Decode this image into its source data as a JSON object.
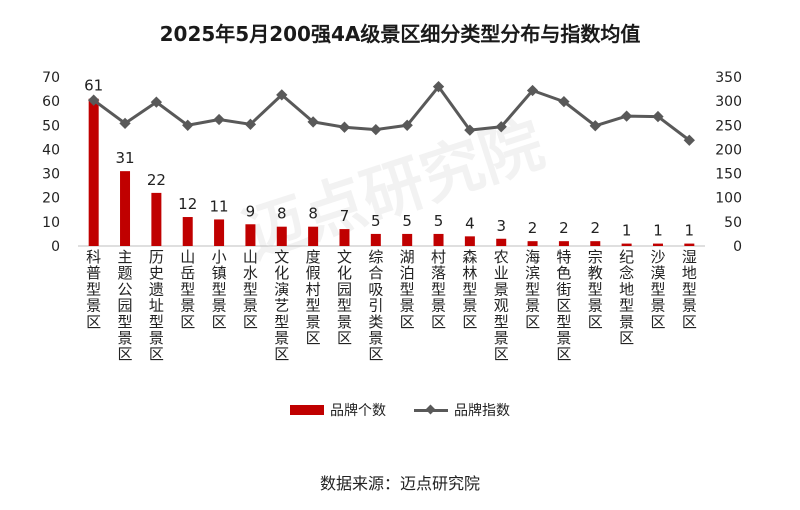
{
  "title": "2025年5月200强4A级景区细分类型分布与指数均值",
  "source": "数据来源：迈点研究院",
  "watermark": "迈点研究院",
  "colors": {
    "bar": "#c00000",
    "line": "#595959",
    "text": "#222222"
  },
  "chart_data": {
    "type": "bar+line",
    "categories": [
      "科普型景区",
      "主题公园型景区",
      "历史遗址型景区",
      "山岳型景区",
      "小镇型景区",
      "山水型景区",
      "文化演艺型景区",
      "度假村型景区",
      "文化园型景区",
      "综合吸引类景区",
      "湖泊型景区",
      "村落型景区",
      "森林型景区",
      "农业景观型景区",
      "海滨型景区",
      "特色街区型景区",
      "宗教型景区",
      "纪念地型景区",
      "沙漠型景区",
      "湿地型景区"
    ],
    "series": [
      {
        "name": "品牌个数",
        "type": "bar",
        "axis": "left",
        "values": [
          61,
          31,
          22,
          12,
          11,
          9,
          8,
          8,
          7,
          5,
          5,
          5,
          4,
          3,
          2,
          2,
          2,
          1,
          1,
          1
        ]
      },
      {
        "name": "品牌指数",
        "type": "line",
        "axis": "right",
        "values": [
          302,
          254,
          298,
          250,
          262,
          252,
          313,
          257,
          246,
          241,
          250,
          330,
          240,
          247,
          322,
          299,
          249,
          269,
          268,
          219
        ]
      }
    ],
    "y_left": {
      "min": 0,
      "max": 70,
      "ticks": [
        0,
        10,
        20,
        30,
        40,
        50,
        60,
        70
      ]
    },
    "y_right": {
      "min": 0,
      "max": 350,
      "ticks": [
        0,
        50,
        100,
        150,
        200,
        250,
        300,
        350
      ]
    },
    "legend_position": "bottom"
  }
}
